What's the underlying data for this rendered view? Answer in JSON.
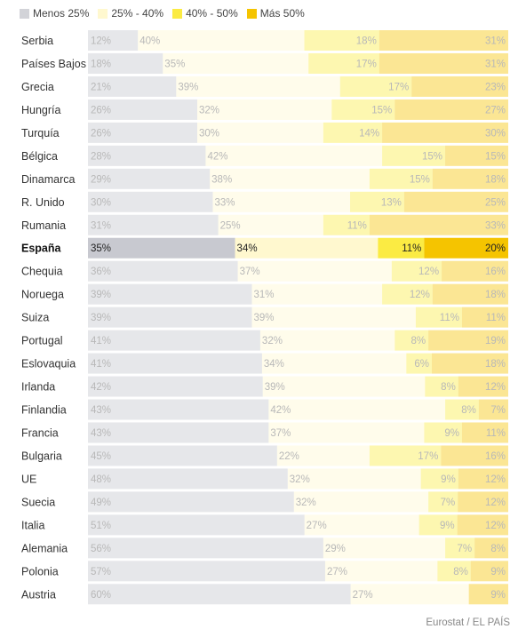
{
  "colors": {
    "lt25": "#d2d3d8",
    "25to40": "#fff8cf",
    "40to50": "#fbeb43",
    "gt50": "#f5c400"
  },
  "legend": [
    {
      "key": "lt25",
      "label": "Menos 25%",
      "color": "#d2d3d8"
    },
    {
      "key": "25to40",
      "label": "25% - 40%",
      "color": "#fff8cf"
    },
    {
      "key": "40to50",
      "label": "40% - 50%",
      "color": "#fbeb43"
    },
    {
      "key": "gt50",
      "label": "Más 50%",
      "color": "#f5c400"
    }
  ],
  "source": "Eurostat / EL PAÍS",
  "chart_data": {
    "type": "bar",
    "stacked": true,
    "orientation": "horizontal",
    "normalized": true,
    "categories": [
      "Serbia",
      "Países Bajos",
      "Grecia",
      "Hungría",
      "Turquía",
      "Bélgica",
      "Dinamarca",
      "R. Unido",
      "Rumania",
      "España",
      "Chequia",
      "Noruega",
      "Suiza",
      "Portugal",
      "Eslovaquia",
      "Irlanda",
      "Finlandia",
      "Francia",
      "Bulgaria",
      "UE",
      "Suecia",
      "Italia",
      "Alemania",
      "Polonia",
      "Austria"
    ],
    "highlight": "España",
    "series": [
      {
        "name": "Menos 25%",
        "values": [
          12,
          18,
          21,
          26,
          26,
          28,
          29,
          30,
          31,
          35,
          36,
          39,
          39,
          41,
          41,
          42,
          43,
          43,
          45,
          48,
          49,
          51,
          56,
          57,
          60
        ]
      },
      {
        "name": "25% - 40%",
        "values": [
          40,
          35,
          39,
          32,
          30,
          42,
          38,
          33,
          25,
          34,
          37,
          31,
          39,
          32,
          34,
          39,
          42,
          37,
          22,
          32,
          32,
          27,
          29,
          27,
          27
        ]
      },
      {
        "name": "40% - 50%",
        "values": [
          18,
          17,
          17,
          15,
          14,
          15,
          15,
          13,
          11,
          11,
          12,
          12,
          11,
          8,
          6,
          8,
          8,
          9,
          17,
          9,
          7,
          9,
          7,
          8,
          null
        ]
      },
      {
        "name": "Más 50%",
        "values": [
          31,
          31,
          23,
          27,
          30,
          15,
          18,
          25,
          33,
          20,
          16,
          18,
          11,
          19,
          18,
          12,
          7,
          11,
          16,
          12,
          12,
          12,
          8,
          9,
          9
        ]
      }
    ]
  }
}
